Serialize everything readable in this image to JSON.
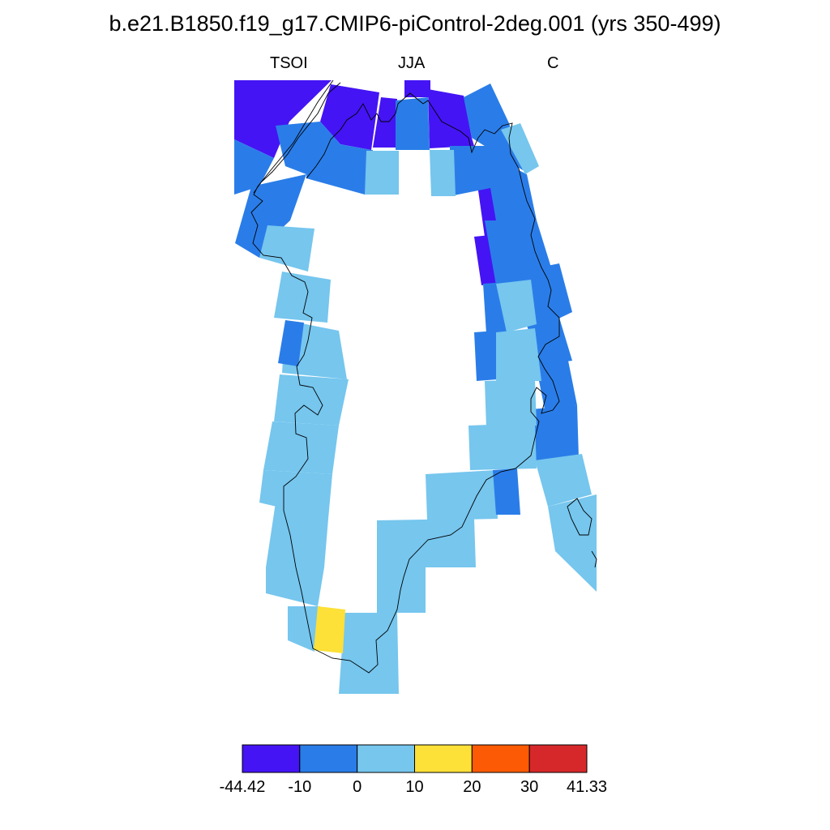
{
  "title": "b.e21.B1850.f19_g17.CMIP6-piControl-2deg.001 (yrs 350-499)",
  "subtitle_left": "TSOI",
  "subtitle_center": "JJA",
  "subtitle_right": "C",
  "colorbar": {
    "labels": [
      "-44.42",
      "-10",
      "0",
      "10",
      "20",
      "30",
      "41.33"
    ],
    "colors": [
      "#4414f4",
      "#2a7de8",
      "#76c6ee",
      "#fde038",
      "#fc5a04",
      "#d6282a"
    ]
  },
  "chart_data": {
    "type": "heatmap",
    "variable": "TSOI",
    "season": "JJA",
    "units": "C",
    "scale_min": -44.42,
    "scale_max": 41.33,
    "boundaries": [
      -44.42,
      -10,
      0,
      10,
      20,
      30,
      41.33
    ],
    "map_colors": {
      "bin_lt_-10": "#4414f4",
      "bin_-10_0": "#2a7de8",
      "bin_0_10": "#76c6ee",
      "bin_10_20": "#fde038",
      "bin_20_30": "#fc5a04",
      "bin_30_plus": "#d6282a"
    }
  }
}
